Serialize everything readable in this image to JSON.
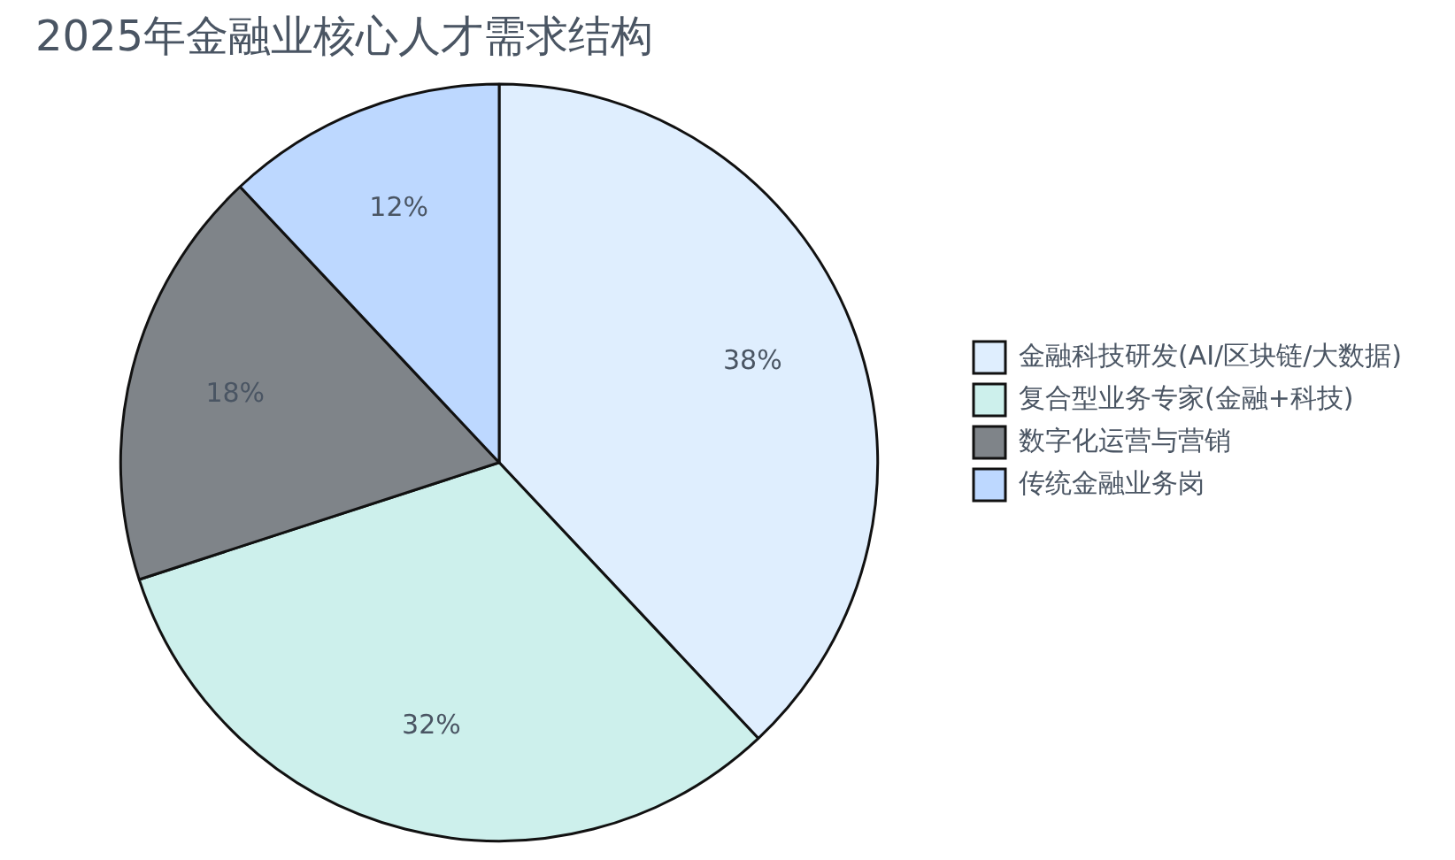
{
  "chart_data": {
    "type": "pie",
    "title": "2025年金融业核心人才需求结构",
    "categories": [
      "金融科技研发(AI/区块链/大数据)",
      "复合型业务专家(金融+科技)",
      "数字化运营与营销",
      "传统金融业务岗"
    ],
    "values": [
      38,
      32,
      18,
      12
    ],
    "colors": [
      "#dfeefe",
      "#cdf0ec",
      "#7f8489",
      "#bdd8ff"
    ],
    "value_labels": [
      "38%",
      "32%",
      "18%",
      "12%"
    ],
    "legend": "right"
  }
}
